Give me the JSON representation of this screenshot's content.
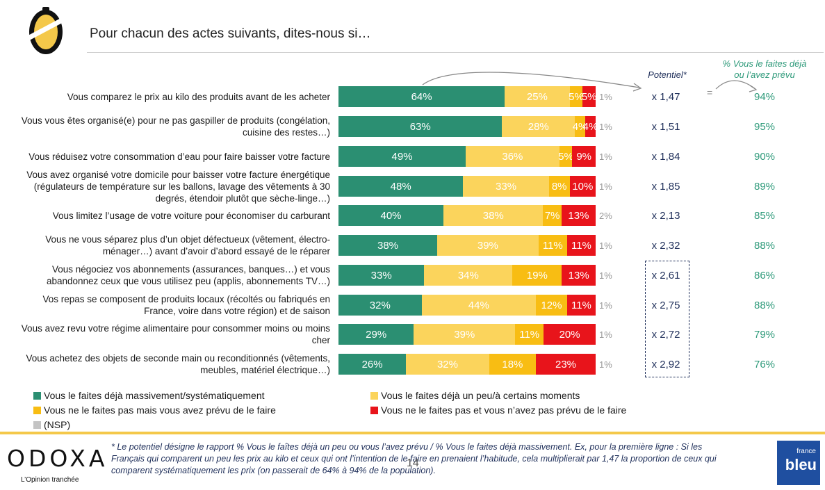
{
  "page": {
    "title": "Pour chacun des actes suivants, dites-nous si…",
    "col_potentiel": "Potentiel*",
    "col_pct_line1": "% Vous le faites déjà",
    "col_pct_line2": "ou l’avez prévu",
    "equals_sign": "="
  },
  "chart_data": {
    "type": "bar",
    "orientation": "horizontal",
    "stacked": true,
    "unit": "%",
    "categories": [
      "Vous comparez le prix au kilo des produits avant de les acheter",
      "Vous vous êtes organisé(e) pour ne pas gaspiller de produits (congélation, cuisine des restes…)",
      "Vous réduisez votre consommation d’eau pour faire baisser votre facture",
      "Vous avez organisé votre domicile pour baisser votre facture énergétique (régulateurs de température sur les ballons, lavage des vêtements à 30 degrés, étendoir plutôt que sèche-linge…)",
      "Vous limitez l’usage de votre voiture pour économiser du carburant",
      "Vous ne vous séparez plus d’un objet défectueux (vêtement, électro-ménager…) avant d’avoir d’abord essayé de le réparer",
      "Vous négociez vos abonnements (assurances, banques…) et vous abandonnez ceux que vous utilisez peu (applis, abonnements TV…)",
      "Vos repas se composent de produits locaux (récoltés ou fabriqués en France, voire dans votre région) et de saison",
      "Vous avez revu votre régime alimentaire pour consommer moins ou moins cher",
      "Vous achetez des objets de seconde main ou reconditionnés (vêtements, meubles, matériel électrique…)"
    ],
    "series": [
      {
        "name": "Vous le faites déjà massivement/systématiquement",
        "color": "#2b8f72",
        "values": [
          64,
          63,
          49,
          48,
          40,
          38,
          33,
          32,
          29,
          26
        ]
      },
      {
        "name": "Vous le faites déjà un peu/à certains moments",
        "color": "#fbd45c",
        "values": [
          25,
          28,
          36,
          33,
          38,
          39,
          34,
          44,
          39,
          32
        ]
      },
      {
        "name": "Vous ne le faites pas mais vous avez prévu de le faire",
        "color": "#f8bd13",
        "values": [
          5,
          4,
          5,
          8,
          7,
          11,
          19,
          12,
          11,
          18
        ]
      },
      {
        "name": "Vous ne le faites pas et vous n’avez pas prévu de le faire",
        "color": "#e8141b",
        "values": [
          5,
          4,
          9,
          10,
          13,
          11,
          13,
          11,
          20,
          23
        ]
      },
      {
        "name": "(NSP)",
        "color": "#c4c4c4",
        "values": [
          1,
          1,
          1,
          1,
          2,
          1,
          1,
          1,
          1,
          1
        ]
      }
    ],
    "potentiel": [
      "x 1,47",
      "x 1,51",
      "x 1,84",
      "x 1,85",
      "x 2,13",
      "x 2,32",
      "x 2,61",
      "x 2,75",
      "x 2,72",
      "x 2,92"
    ],
    "pct_deja_ou_prevu": [
      "94%",
      "95%",
      "90%",
      "89%",
      "85%",
      "88%",
      "86%",
      "88%",
      "79%",
      "76%"
    ],
    "legend_placement": "bottom"
  },
  "footer": {
    "brand": "ODOXA",
    "tagline": "L’Opinion tranchée",
    "footnote": "* Le potentiel désigne le rapport % Vous le faîtes déjà un peu ou vous l’avez prévu / % Vous le faites déjà massivement. Ex, pour la première ligne : Si les Français qui comparent un peu les prix au kilo et ceux qui ont l’intention de le faire en prenaient l’habitude, cela multiplierait par 1,47 la proportion de ceux qui comparent systématiquement les prix (on passerait de 64% à 94% de la population).",
    "page_number": "14",
    "partner_small": "france",
    "partner_big": "bleu"
  }
}
